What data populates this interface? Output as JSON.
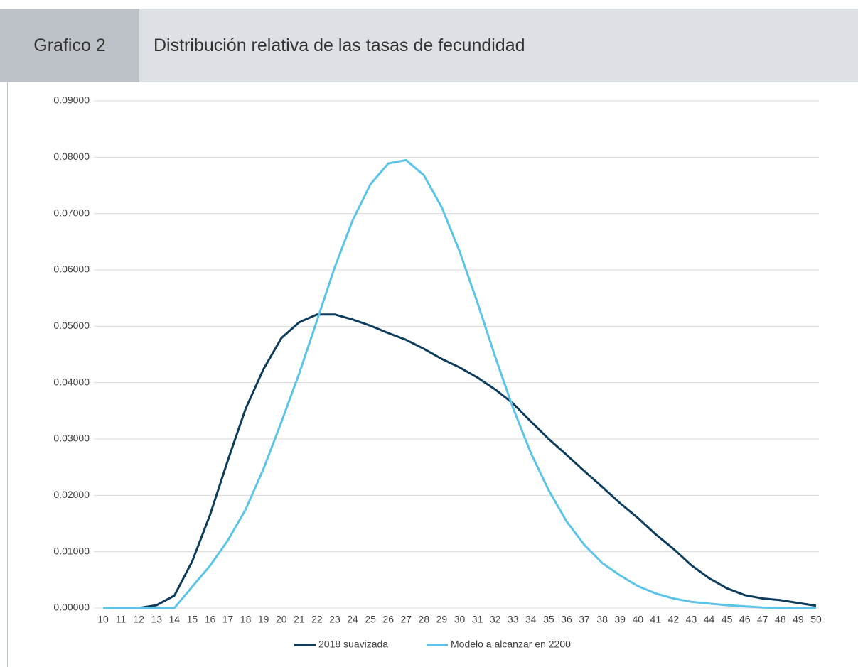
{
  "header": {
    "label": "Grafico 2",
    "title": "Distribución relativa de las tasas de fecundidad"
  },
  "chart_data": {
    "type": "line",
    "categories": [
      "10",
      "11",
      "12",
      "13",
      "14",
      "15",
      "16",
      "17",
      "18",
      "19",
      "20",
      "21",
      "22",
      "23",
      "24",
      "25",
      "26",
      "27",
      "28",
      "29",
      "30",
      "31",
      "32",
      "33",
      "34",
      "35",
      "36",
      "37",
      "38",
      "39",
      "40",
      "41",
      "42",
      "43",
      "44",
      "45",
      "46",
      "47",
      "48",
      "49",
      "50"
    ],
    "series": [
      {
        "name": "2018 suavizada",
        "color": "#0d3d5c",
        "values": [
          0,
          0,
          0,
          0.0005,
          0.0022,
          0.0083,
          0.0165,
          0.0262,
          0.0354,
          0.0424,
          0.0479,
          0.0507,
          0.0521,
          0.0521,
          0.0512,
          0.0501,
          0.0488,
          0.0476,
          0.046,
          0.0442,
          0.0427,
          0.0409,
          0.0388,
          0.0363,
          0.0331,
          0.03,
          0.0272,
          0.0243,
          0.0215,
          0.0186,
          0.016,
          0.0131,
          0.0105,
          0.0076,
          0.0053,
          0.0035,
          0.0023,
          0.0017,
          0.0014,
          0.0009,
          0.0004
        ]
      },
      {
        "name": "Modelo a alcanzar en 2200",
        "color": "#5bc4e8",
        "values": [
          0,
          0,
          0,
          0,
          0,
          0.0038,
          0.0075,
          0.012,
          0.0175,
          0.0247,
          0.033,
          0.0416,
          0.051,
          0.0605,
          0.0688,
          0.0752,
          0.0789,
          0.0795,
          0.0768,
          0.0711,
          0.0633,
          0.0542,
          0.0446,
          0.0355,
          0.0275,
          0.0209,
          0.0154,
          0.0112,
          0.008,
          0.0058,
          0.0039,
          0.0026,
          0.0017,
          0.0011,
          0.0008,
          0.0005,
          0.0003,
          0.0001,
          0,
          0,
          0
        ]
      }
    ],
    "ylim": [
      0,
      0.09
    ],
    "yticks": [
      {
        "value": 0,
        "label": "0.00000"
      },
      {
        "value": 0.01,
        "label": "0.01000"
      },
      {
        "value": 0.02,
        "label": "0.02000"
      },
      {
        "value": 0.03,
        "label": "0.03000"
      },
      {
        "value": 0.04,
        "label": "0.04000"
      },
      {
        "value": 0.05,
        "label": "0.05000"
      },
      {
        "value": 0.06,
        "label": "0.06000"
      },
      {
        "value": 0.07,
        "label": "0.07000"
      },
      {
        "value": 0.08,
        "label": "0.08000"
      },
      {
        "value": 0.09,
        "label": "0.09000"
      }
    ],
    "grid": true,
    "legend": "bottom"
  }
}
